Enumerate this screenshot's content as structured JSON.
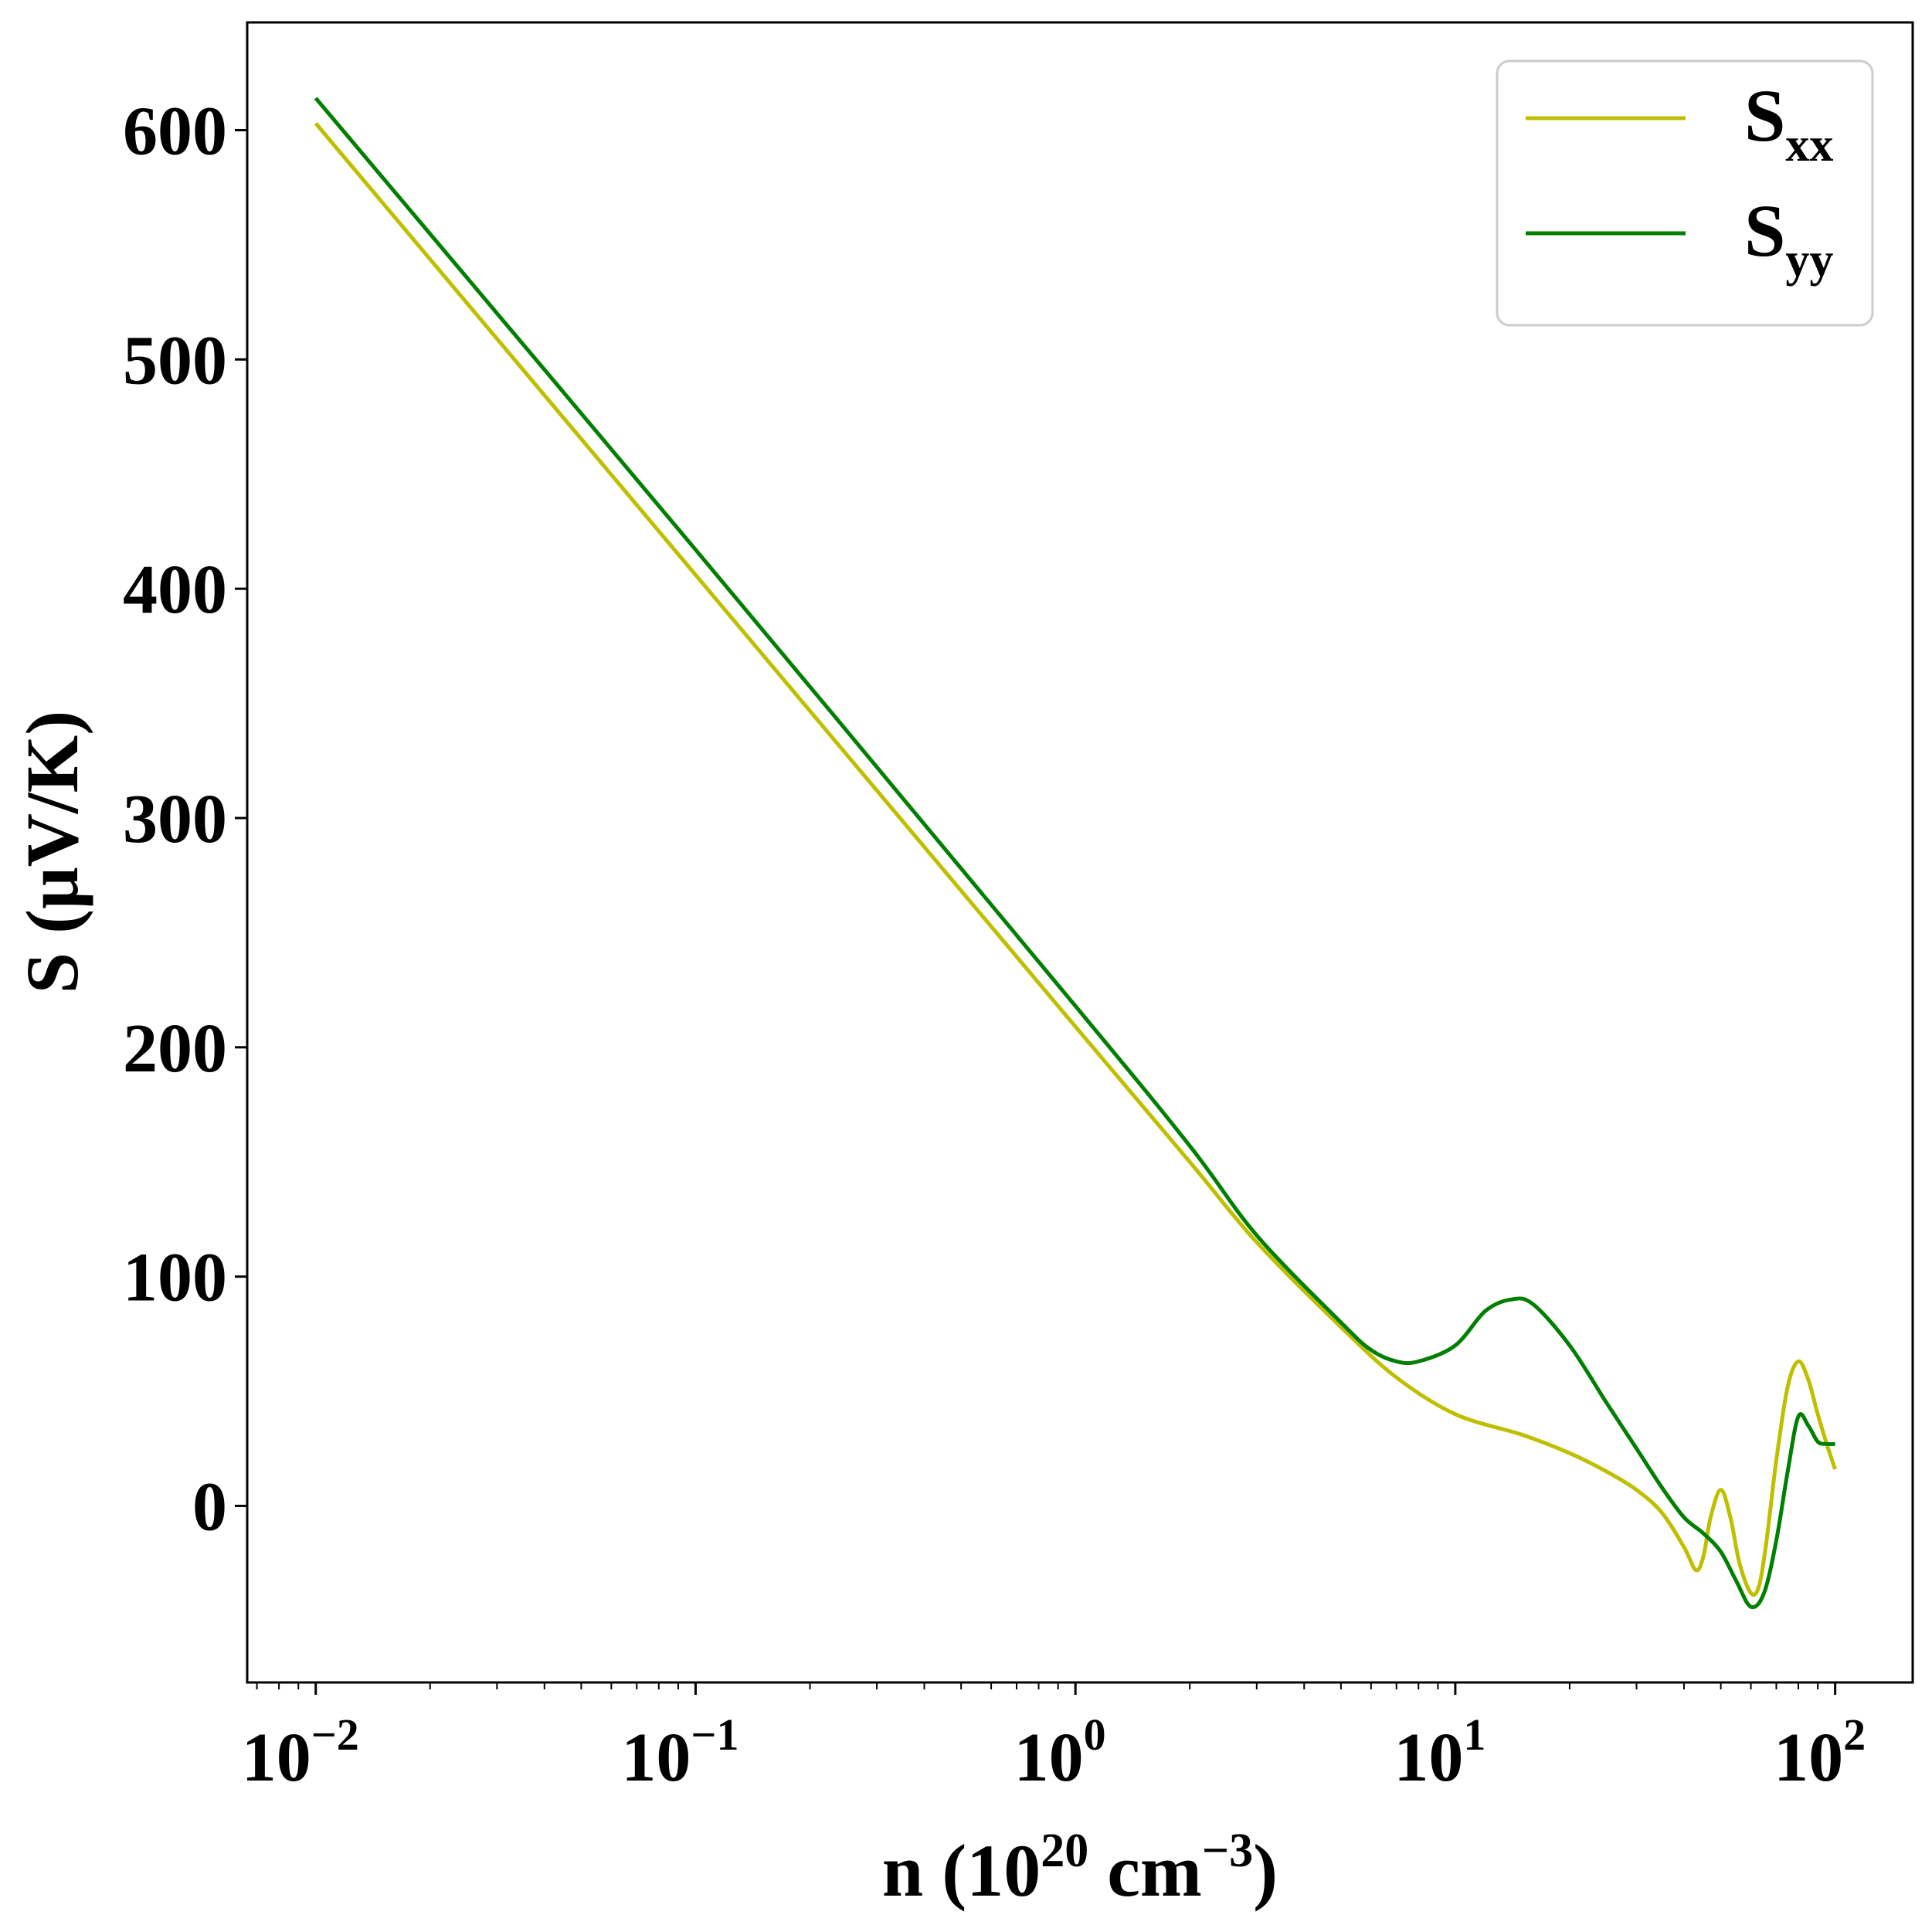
{
  "chart_data": {
    "type": "line",
    "title": "",
    "xlabel": {
      "base": "n (10",
      "exp1": "20",
      "mid": " cm",
      "exp2": "−3",
      "end": ")"
    },
    "ylabel": "S (μV/K)",
    "x_scale": "log",
    "xlim": [
      0.0066,
      160
    ],
    "ylim": [
      -77,
      647
    ],
    "x_ticks": [
      {
        "value": 0.01,
        "base": "10",
        "exp": "−2"
      },
      {
        "value": 0.1,
        "base": "10",
        "exp": "−1"
      },
      {
        "value": 1,
        "base": "10",
        "exp": "0"
      },
      {
        "value": 10,
        "base": "10",
        "exp": "1"
      },
      {
        "value": 100,
        "base": "10",
        "exp": "2"
      }
    ],
    "y_ticks": [
      0,
      100,
      200,
      300,
      400,
      500,
      600
    ],
    "grid": false,
    "legend_position": "top-right",
    "series": [
      {
        "name": "S",
        "subscript": "xx",
        "color": "#bfbf00",
        "points": [
          [
            0.01,
            603
          ],
          [
            0.1,
            406
          ],
          [
            1,
            209
          ],
          [
            2,
            150
          ],
          [
            3,
            115
          ],
          [
            5,
            78
          ],
          [
            7,
            56
          ],
          [
            10,
            40
          ],
          [
            15,
            31
          ],
          [
            20,
            23
          ],
          [
            25,
            15
          ],
          [
            30,
            7
          ],
          [
            35,
            -3
          ],
          [
            40,
            -18
          ],
          [
            43,
            -28
          ],
          [
            45,
            -22
          ],
          [
            47,
            -5
          ],
          [
            50,
            7
          ],
          [
            53,
            -5
          ],
          [
            56,
            -25
          ],
          [
            60,
            -38
          ],
          [
            63,
            -35
          ],
          [
            66,
            -15
          ],
          [
            70,
            20
          ],
          [
            75,
            52
          ],
          [
            80,
            63
          ],
          [
            85,
            55
          ],
          [
            90,
            40
          ],
          [
            95,
            27
          ],
          [
            100,
            16
          ]
        ]
      },
      {
        "name": "S",
        "subscript": "yy",
        "color": "#007f00",
        "points": [
          [
            0.01,
            614
          ],
          [
            0.1,
            417
          ],
          [
            1,
            218
          ],
          [
            2,
            157
          ],
          [
            3,
            118
          ],
          [
            5,
            80
          ],
          [
            6,
            68
          ],
          [
            7,
            63
          ],
          [
            8,
            63
          ],
          [
            10,
            70
          ],
          [
            12,
            85
          ],
          [
            14,
            90
          ],
          [
            16,
            88
          ],
          [
            20,
            70
          ],
          [
            25,
            45
          ],
          [
            30,
            25
          ],
          [
            35,
            8
          ],
          [
            40,
            -5
          ],
          [
            45,
            -12
          ],
          [
            50,
            -20
          ],
          [
            55,
            -33
          ],
          [
            60,
            -44
          ],
          [
            65,
            -38
          ],
          [
            70,
            -15
          ],
          [
            75,
            15
          ],
          [
            80,
            39
          ],
          [
            85,
            35
          ],
          [
            90,
            28
          ],
          [
            95,
            27
          ],
          [
            100,
            27
          ]
        ]
      }
    ]
  }
}
